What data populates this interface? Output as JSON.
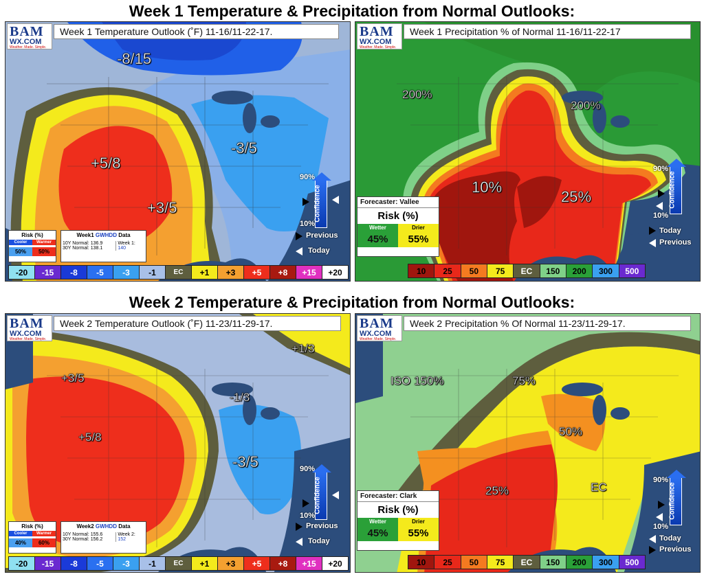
{
  "headings": {
    "week1": "Week 1 Temperature & Precipitation from Normal Outlooks:",
    "week2": "Week 2 Temperature & Precipitation from Normal Outlooks:"
  },
  "logo": {
    "line1": "BAM",
    "line2": "WX.COM",
    "tagline": "Weather. Made. Simple."
  },
  "colors": {
    "cold_deep": "#1a4fe0",
    "cold": "#2a9df0",
    "cold_light": "#8fb8e8",
    "ec": "#5a5a3a",
    "warm1": "#f6f01a",
    "warm3": "#f5a030",
    "warm5": "#f03020",
    "wet_green": "#2aa038",
    "dry_red": "#e02a1a",
    "dry_dark": "#a01a10"
  },
  "confidence": {
    "label": "Confidence",
    "high": "90%",
    "low": "10%",
    "previous": "Previous",
    "today": "Today"
  },
  "temp_scale": [
    "-20",
    "-15",
    "-8",
    "-5",
    "-3",
    "-1",
    "EC",
    "+1",
    "+3",
    "+5",
    "+8",
    "+15",
    "+20"
  ],
  "precip_scale": [
    "10",
    "25",
    "50",
    "75",
    "EC",
    "150",
    "200",
    "300",
    "500"
  ],
  "panels": {
    "w1_temp": {
      "title": "Week 1 Temperature Outlook (˚F) 11-16/11-22-17.",
      "labels": [
        "-8/15",
        "+5/8",
        "+3/5",
        "-3/5"
      ],
      "risk": {
        "header": "Risk (%)",
        "cooler": "Cooler",
        "warmer": "Warmer",
        "cooler_val": "50%",
        "warmer_val": "50%"
      },
      "gwhdd": {
        "title_a": "Week1",
        "title_b": "GWHDD",
        "title_c": "Data",
        "n10": "10Y Normal: 136.9",
        "n30": "30Y Normal: 138.1",
        "wk_label": "Week 1:",
        "wk_val": "140"
      }
    },
    "w1_precip": {
      "title": "Week 1 Precipitation % of Normal 11-16/11-22-17",
      "labels": [
        "200%",
        "200%",
        "10%",
        "25%"
      ],
      "forecaster": "Forecaster: Vallee",
      "risk": "Risk (%)",
      "wetter": "Wetter",
      "drier": "Drier",
      "wetter_val": "45%",
      "drier_val": "55%"
    },
    "w2_temp": {
      "title": "Week 2 Temperature Outlook (˚F) 11-23/11-29-17.",
      "labels": [
        "+1/3",
        "+3/5",
        "+5/8",
        "-1/3",
        "-3/5"
      ],
      "risk": {
        "header": "Risk (%)",
        "cooler": "Cooler",
        "warmer": "Warmer",
        "cooler_val": "40%",
        "warmer_val": "60%"
      },
      "gwhdd": {
        "title_a": "Week2",
        "title_b": "GWHDD",
        "title_c": "Data",
        "n10": "10Y Normal: 155.6",
        "n30": "30Y Normal: 156.2",
        "wk_label": "Week 2:",
        "wk_val": "152"
      }
    },
    "w2_precip": {
      "title": "Week 2 Precipitation % Of Normal 11-23/11-29-17.",
      "labels": [
        "ISO 150%",
        "75%",
        "50%",
        "25%",
        "EC"
      ],
      "forecaster": "Forecaster: Clark",
      "risk": "Risk (%)",
      "wetter": "Wetter",
      "drier": "Drier",
      "wetter_val": "45%",
      "drier_val": "55%"
    }
  }
}
